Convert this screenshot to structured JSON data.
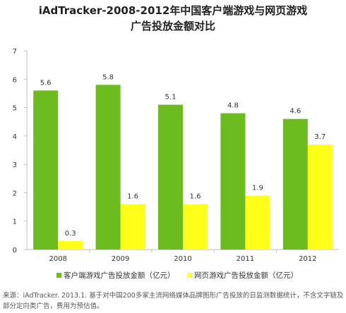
{
  "chart_data": {
    "type": "bar",
    "title": "iAdTracker-2008-2012年中国客户端游戏与网页游戏",
    "subtitle": "广告投放金额对比",
    "categories": [
      "2008",
      "2009",
      "2010",
      "2011",
      "2012"
    ],
    "series": [
      {
        "name": "客户端游戏广告投放金额（亿元）",
        "values": [
          5.6,
          5.8,
          5.1,
          4.8,
          4.6
        ],
        "color": "#6cbb1f"
      },
      {
        "name": "网页游戏广告投放金额（亿元）",
        "values": [
          0.3,
          1.6,
          1.6,
          1.9,
          3.7
        ],
        "color": "#ffff1a"
      }
    ],
    "ylim": [
      0,
      7
    ],
    "yticks": [
      0,
      1,
      2,
      3,
      4,
      5,
      6,
      7
    ],
    "grid": false,
    "legend": "bottom",
    "data_labels": true
  },
  "source_note": "来源：iAdTracker. 2013.1. 基于对中国200多家主流网络媒体品牌图形广告投放的日监测数据统计，不含文字链及部分定向类广告，费用为预估值。"
}
